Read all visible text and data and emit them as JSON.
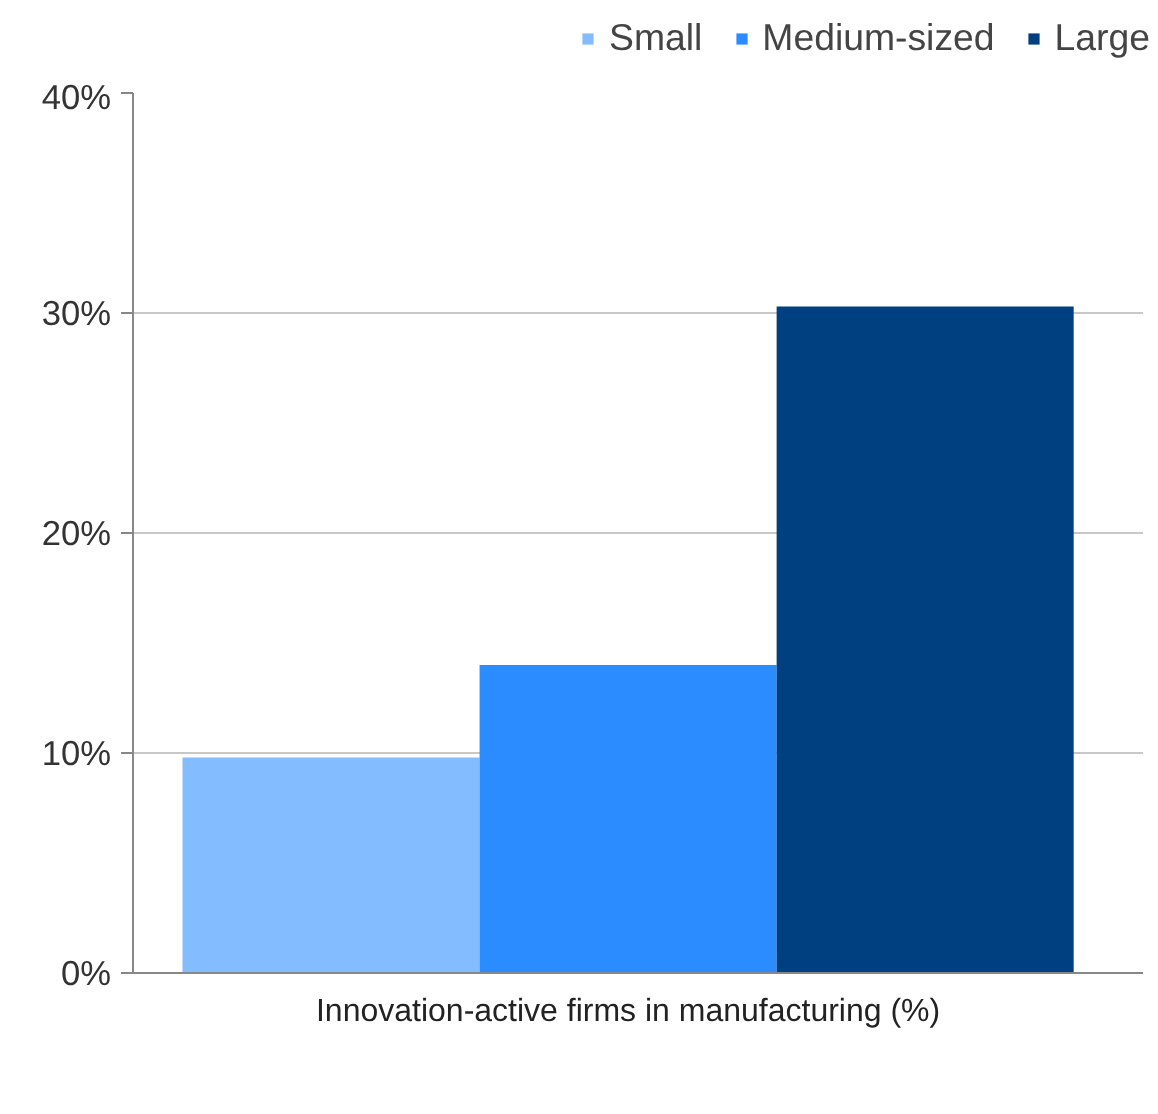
{
  "chart_data": {
    "type": "bar",
    "categories": [
      "Innovation-active firms in manufacturing (%)"
    ],
    "series": [
      {
        "name": "Small",
        "color": "#83bcff",
        "values": [
          9.8
        ]
      },
      {
        "name": "Medium-sized",
        "color": "#2a8cff",
        "values": [
          14
        ]
      },
      {
        "name": "Large",
        "color": "#003f80",
        "values": [
          30.3
        ]
      }
    ],
    "ylim": [
      0,
      40
    ],
    "yticks": [
      {
        "value": 0,
        "label": "0%"
      },
      {
        "value": 10,
        "label": "10%"
      },
      {
        "value": 20,
        "label": "20%"
      },
      {
        "value": 30,
        "label": "30%"
      },
      {
        "value": 40,
        "label": "40%"
      }
    ],
    "grid": "y",
    "legend": "top"
  }
}
